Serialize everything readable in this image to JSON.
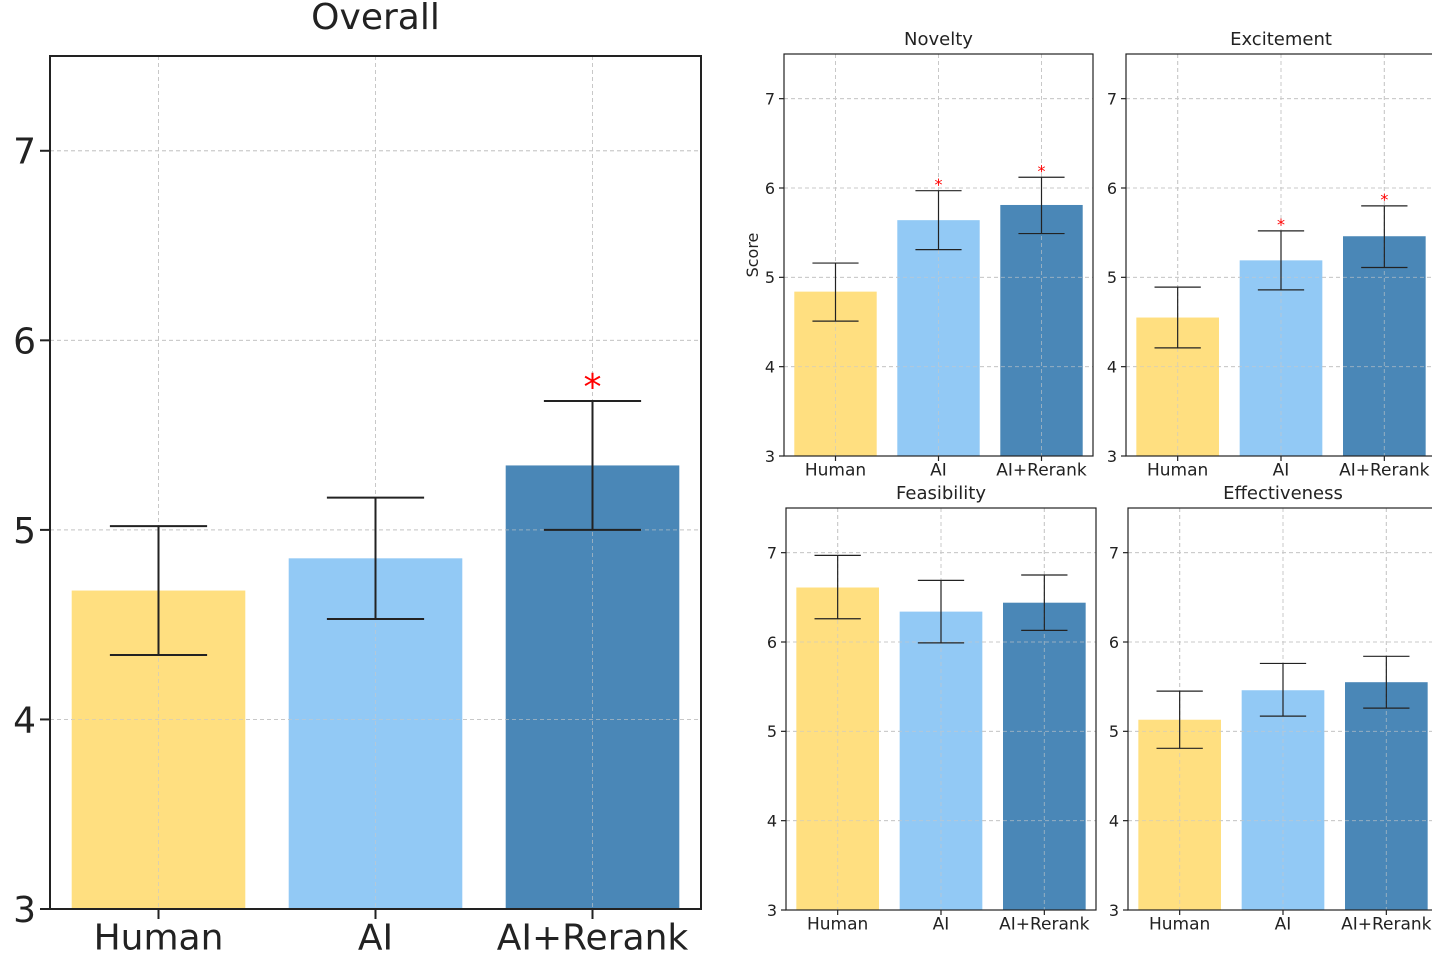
{
  "colors": {
    "human": "#FFDF80",
    "ai": "#92C9F5",
    "ai_rerank": "#4A87B7",
    "significance": "#FF0000",
    "grid": "#C8C8C8",
    "axis": "#222222"
  },
  "chart_data": [
    {
      "type": "bar",
      "title": "Overall",
      "ylabel": "",
      "categories": [
        "Human",
        "AI",
        "AI+Rerank"
      ],
      "values": [
        4.68,
        4.85,
        5.34
      ],
      "error_low": [
        4.34,
        4.53,
        5.0
      ],
      "error_high": [
        5.02,
        5.17,
        5.68
      ],
      "significance": [
        "",
        "",
        "*"
      ],
      "ylim": [
        3,
        7.5
      ],
      "yticks": [
        3,
        4,
        5,
        6,
        7
      ],
      "grid": true
    },
    {
      "type": "bar",
      "title": "Novelty",
      "ylabel": "Score",
      "categories": [
        "Human",
        "AI",
        "AI+Rerank"
      ],
      "values": [
        4.84,
        5.64,
        5.81
      ],
      "error_low": [
        4.51,
        5.31,
        5.49
      ],
      "error_high": [
        5.16,
        5.97,
        6.12
      ],
      "significance": [
        "",
        "*",
        "*"
      ],
      "ylim": [
        3,
        7.5
      ],
      "yticks": [
        3,
        4,
        5,
        6,
        7
      ],
      "grid": true
    },
    {
      "type": "bar",
      "title": "Excitement",
      "ylabel": "",
      "categories": [
        "Human",
        "AI",
        "AI+Rerank"
      ],
      "values": [
        4.55,
        5.19,
        5.46
      ],
      "error_low": [
        4.21,
        4.86,
        5.11
      ],
      "error_high": [
        4.89,
        5.52,
        5.8
      ],
      "significance": [
        "",
        "*",
        "*"
      ],
      "ylim": [
        3,
        7.5
      ],
      "yticks": [
        3,
        4,
        5,
        6,
        7
      ],
      "grid": true
    },
    {
      "type": "bar",
      "title": "Feasibility",
      "ylabel": "",
      "categories": [
        "Human",
        "AI",
        "AI+Rerank"
      ],
      "values": [
        6.61,
        6.34,
        6.44
      ],
      "error_low": [
        6.26,
        5.99,
        6.13
      ],
      "error_high": [
        6.97,
        6.69,
        6.75
      ],
      "significance": [
        "",
        "",
        ""
      ],
      "ylim": [
        3,
        7.5
      ],
      "yticks": [
        3,
        4,
        5,
        6,
        7
      ],
      "grid": true
    },
    {
      "type": "bar",
      "title": "Effectiveness",
      "ylabel": "",
      "categories": [
        "Human",
        "AI",
        "AI+Rerank"
      ],
      "values": [
        5.13,
        5.46,
        5.55
      ],
      "error_low": [
        4.81,
        5.17,
        5.26
      ],
      "error_high": [
        5.45,
        5.76,
        5.84
      ],
      "significance": [
        "",
        "",
        ""
      ],
      "ylim": [
        3,
        7.5
      ],
      "yticks": [
        3,
        4,
        5,
        6,
        7
      ],
      "grid": true
    }
  ]
}
